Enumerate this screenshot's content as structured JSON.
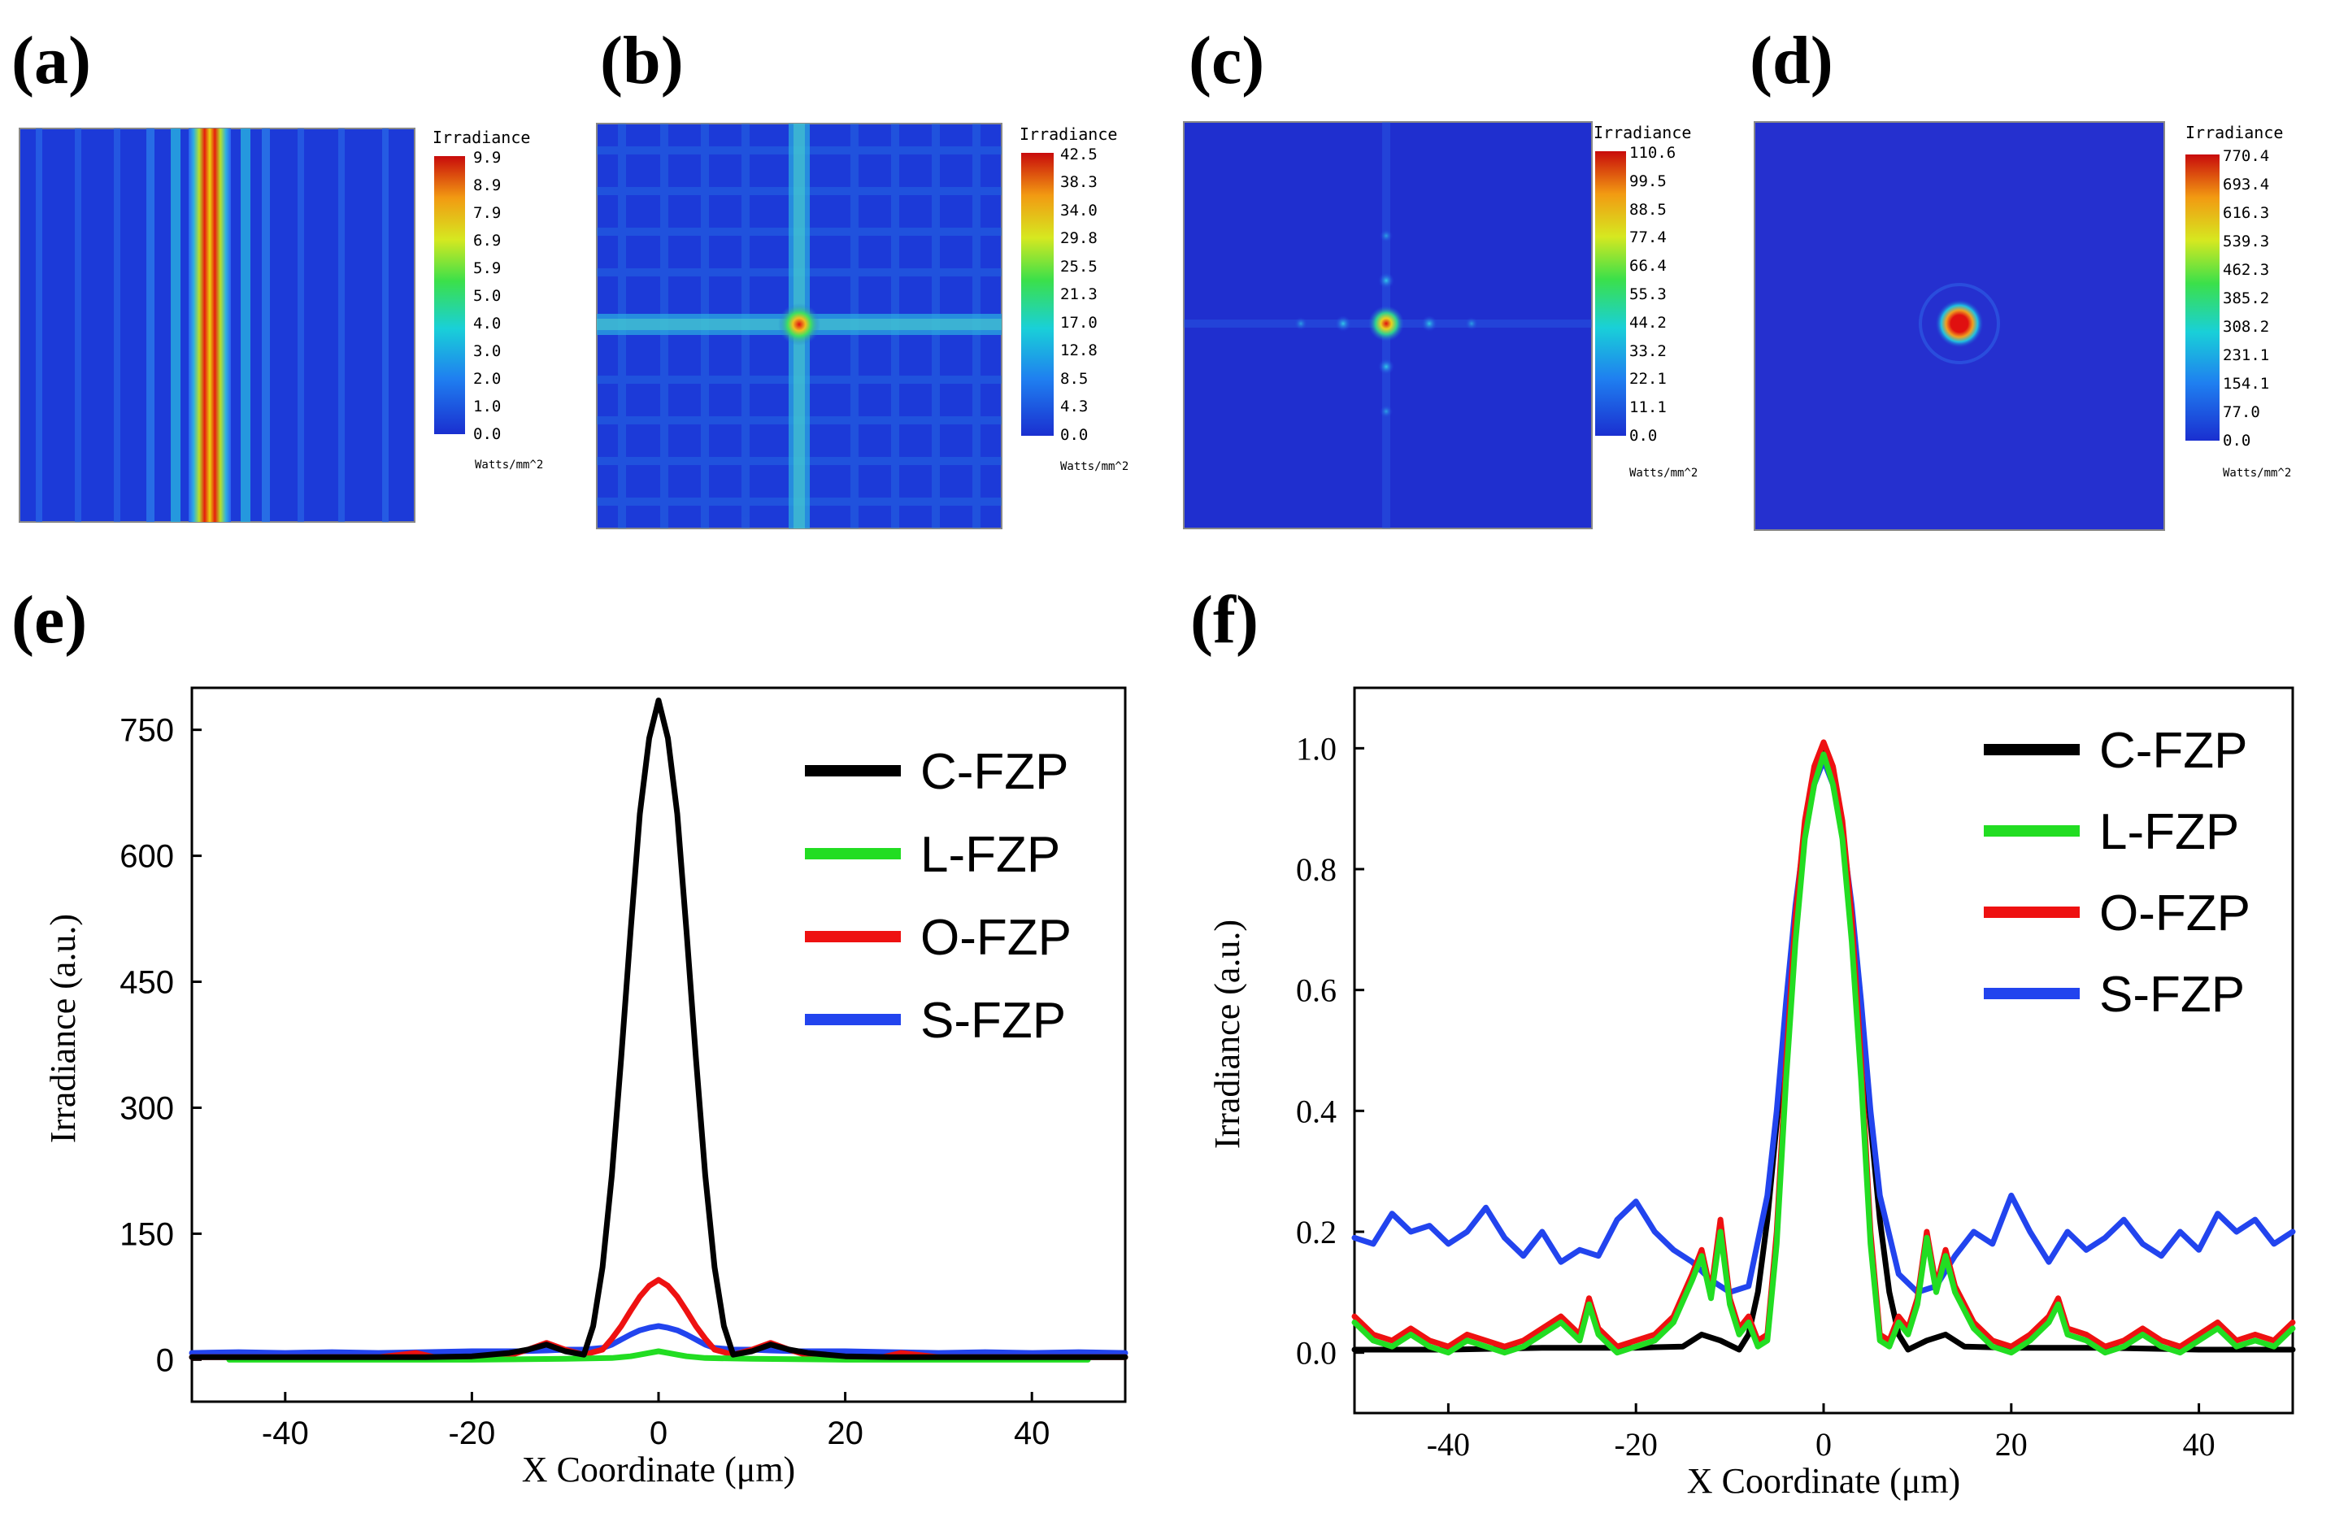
{
  "panels": {
    "a": {
      "letter": "(a)",
      "cb_title": "Irradiance",
      "cb_unit": "Watts/mm^2",
      "cb_ticks": [
        "9.9",
        "8.9",
        "7.9",
        "6.9",
        "5.9",
        "5.0",
        "4.0",
        "3.0",
        "2.0",
        "1.0",
        "0.0"
      ]
    },
    "b": {
      "letter": "(b)",
      "cb_title": "Irradiance",
      "cb_unit": "Watts/mm^2",
      "cb_ticks": [
        "42.5",
        "38.3",
        "34.0",
        "29.8",
        "25.5",
        "21.3",
        "17.0",
        "12.8",
        "8.5",
        "4.3",
        "0.0"
      ]
    },
    "c": {
      "letter": "(c)",
      "cb_title": "Irradiance",
      "cb_unit": "Watts/mm^2",
      "cb_ticks": [
        "110.6",
        "99.5",
        "88.5",
        "77.4",
        "66.4",
        "55.3",
        "44.2",
        "33.2",
        "22.1",
        "11.1",
        "0.0"
      ]
    },
    "d": {
      "letter": "(d)",
      "cb_title": "Irradiance",
      "cb_unit": "Watts/mm^2",
      "cb_ticks": [
        "770.4",
        "693.4",
        "616.3",
        "539.3",
        "462.3",
        "385.2",
        "308.2",
        "231.1",
        "154.1",
        "77.0",
        "0.0"
      ]
    },
    "e": {
      "letter": "(e)"
    },
    "f": {
      "letter": "(f)"
    }
  },
  "chart_data": [
    {
      "id": "e",
      "type": "line",
      "title": "",
      "xlabel": "X Coordinate (μm)",
      "ylabel": "Irradiance (a.u.)",
      "xlim": [
        -50,
        50
      ],
      "ylim": [
        -50,
        800
      ],
      "xticks": [
        -40,
        -20,
        0,
        20,
        40
      ],
      "yticks": [
        0,
        150,
        300,
        450,
        600,
        750
      ],
      "legend_position": "top-right",
      "series": [
        {
          "name": "C-FZP",
          "color": "#000000",
          "x": [
            -50,
            -45,
            -40,
            -35,
            -30,
            -25,
            -20,
            -16,
            -14,
            -12,
            -10,
            -8,
            -7,
            -6,
            -5,
            -4,
            -3,
            -2,
            -1,
            0,
            1,
            2,
            3,
            4,
            5,
            6,
            7,
            8,
            10,
            12,
            14,
            16,
            20,
            25,
            30,
            35,
            40,
            45,
            50
          ],
          "y": [
            3,
            3,
            3,
            3,
            3,
            3,
            4,
            8,
            12,
            18,
            10,
            6,
            40,
            110,
            220,
            360,
            510,
            650,
            740,
            785,
            740,
            650,
            510,
            360,
            220,
            110,
            40,
            6,
            10,
            18,
            12,
            8,
            4,
            3,
            3,
            3,
            3,
            3,
            3
          ]
        },
        {
          "name": "L-FZP",
          "color": "#22dd22",
          "x": [
            -46,
            -40,
            -30,
            -20,
            -10,
            -5,
            -3,
            -2,
            -1,
            0,
            1,
            2,
            3,
            5,
            10,
            20,
            30,
            40,
            46
          ],
          "y": [
            0,
            0,
            0,
            0,
            1,
            2,
            4,
            6,
            8,
            10,
            8,
            6,
            4,
            2,
            1,
            0,
            0,
            0,
            0
          ]
        },
        {
          "name": "O-FZP",
          "color": "#ee1111",
          "x": [
            -50,
            -45,
            -40,
            -35,
            -30,
            -26,
            -24,
            -20,
            -16,
            -14,
            -12,
            -10,
            -8,
            -6,
            -5,
            -4,
            -3,
            -2,
            -1,
            0,
            1,
            2,
            3,
            4,
            5,
            6,
            8,
            10,
            12,
            14,
            16,
            20,
            24,
            26,
            30,
            35,
            40,
            45,
            50
          ],
          "y": [
            3,
            3,
            3,
            3,
            3,
            8,
            3,
            3,
            5,
            12,
            20,
            12,
            6,
            12,
            25,
            40,
            58,
            75,
            88,
            95,
            88,
            75,
            58,
            40,
            25,
            12,
            6,
            12,
            20,
            12,
            5,
            3,
            3,
            8,
            3,
            3,
            3,
            3,
            3
          ]
        },
        {
          "name": "S-FZP",
          "color": "#2244ee",
          "x": [
            -50,
            -45,
            -40,
            -35,
            -30,
            -25,
            -20,
            -15,
            -12,
            -10,
            -8,
            -6,
            -5,
            -4,
            -3,
            -2,
            -1,
            0,
            1,
            2,
            3,
            4,
            5,
            6,
            8,
            10,
            12,
            15,
            20,
            25,
            30,
            35,
            40,
            45,
            50
          ],
          "y": [
            8,
            9,
            8,
            9,
            8,
            9,
            10,
            10,
            11,
            12,
            12,
            14,
            18,
            24,
            30,
            35,
            38,
            40,
            38,
            35,
            30,
            24,
            18,
            14,
            12,
            12,
            11,
            10,
            10,
            9,
            8,
            9,
            8,
            9,
            8
          ]
        }
      ]
    },
    {
      "id": "f",
      "type": "line",
      "title": "",
      "xlabel": "X Coordinate (μm)",
      "ylabel": "Irradiance (a.u.)",
      "xlim": [
        -50,
        50
      ],
      "ylim": [
        -0.1,
        1.1
      ],
      "xticks": [
        -40,
        -20,
        0,
        20,
        40
      ],
      "yticks": [
        "0.0",
        "0.2",
        "0.4",
        "0.6",
        "0.8",
        "1.0"
      ],
      "legend_position": "top-right",
      "series": [
        {
          "name": "C-FZP",
          "color": "#000000",
          "x": [
            -50,
            -40,
            -30,
            -20,
            -15,
            -13,
            -11,
            -9,
            -8,
            -7,
            -6,
            -5,
            -4,
            -3,
            -2,
            -1,
            0,
            1,
            2,
            3,
            4,
            5,
            6,
            7,
            8,
            9,
            11,
            13,
            15,
            20,
            30,
            40,
            50
          ],
          "y": [
            0.005,
            0.005,
            0.008,
            0.008,
            0.01,
            0.03,
            0.02,
            0.005,
            0.03,
            0.1,
            0.22,
            0.38,
            0.55,
            0.72,
            0.86,
            0.96,
            1.0,
            0.96,
            0.86,
            0.72,
            0.55,
            0.38,
            0.22,
            0.1,
            0.03,
            0.005,
            0.02,
            0.03,
            0.01,
            0.008,
            0.008,
            0.005,
            0.005
          ]
        },
        {
          "name": "L-FZP",
          "color": "#22dd22",
          "x": [
            -50,
            -48,
            -46,
            -44,
            -42,
            -40,
            -38,
            -36,
            -34,
            -32,
            -30,
            -28,
            -26,
            -25,
            -24,
            -22,
            -20,
            -18,
            -16,
            -14,
            -13,
            -12,
            -11,
            -10,
            -9,
            -8,
            -7,
            -6,
            -5,
            -4,
            -3,
            -2,
            -1,
            0,
            1,
            2,
            3,
            4,
            5,
            6,
            7,
            8,
            9,
            10,
            11,
            12,
            13,
            14,
            16,
            18,
            20,
            22,
            24,
            25,
            26,
            28,
            30,
            32,
            34,
            36,
            38,
            40,
            42,
            44,
            46,
            48,
            50
          ],
          "y": [
            0.05,
            0.02,
            0.01,
            0.03,
            0.01,
            0.0,
            0.02,
            0.01,
            0.0,
            0.01,
            0.03,
            0.05,
            0.02,
            0.08,
            0.03,
            0.0,
            0.01,
            0.02,
            0.05,
            0.12,
            0.16,
            0.09,
            0.2,
            0.08,
            0.03,
            0.05,
            0.01,
            0.02,
            0.18,
            0.45,
            0.68,
            0.85,
            0.94,
            0.99,
            0.94,
            0.85,
            0.68,
            0.45,
            0.18,
            0.02,
            0.01,
            0.05,
            0.03,
            0.08,
            0.19,
            0.1,
            0.16,
            0.1,
            0.04,
            0.01,
            0.0,
            0.02,
            0.05,
            0.08,
            0.03,
            0.02,
            0.0,
            0.01,
            0.03,
            0.01,
            0.0,
            0.02,
            0.04,
            0.01,
            0.02,
            0.01,
            0.04
          ]
        },
        {
          "name": "O-FZP",
          "color": "#ee1111",
          "x": [
            -50,
            -48,
            -46,
            -44,
            -42,
            -40,
            -38,
            -36,
            -34,
            -32,
            -30,
            -28,
            -26,
            -25,
            -24,
            -22,
            -20,
            -18,
            -16,
            -14,
            -13,
            -12,
            -11,
            -10,
            -9,
            -8,
            -7,
            -6,
            -5,
            -4,
            -3,
            -2,
            -1,
            0,
            1,
            2,
            3,
            4,
            5,
            6,
            7,
            8,
            9,
            10,
            11,
            12,
            13,
            14,
            16,
            18,
            20,
            22,
            24,
            25,
            26,
            28,
            30,
            32,
            34,
            36,
            38,
            40,
            42,
            44,
            46,
            48,
            50
          ],
          "y": [
            0.06,
            0.03,
            0.02,
            0.04,
            0.02,
            0.01,
            0.03,
            0.02,
            0.01,
            0.02,
            0.04,
            0.06,
            0.03,
            0.09,
            0.04,
            0.01,
            0.02,
            0.03,
            0.06,
            0.13,
            0.17,
            0.1,
            0.22,
            0.09,
            0.04,
            0.06,
            0.02,
            0.03,
            0.2,
            0.48,
            0.72,
            0.88,
            0.97,
            1.01,
            0.97,
            0.88,
            0.72,
            0.48,
            0.2,
            0.03,
            0.02,
            0.06,
            0.04,
            0.09,
            0.2,
            0.11,
            0.17,
            0.11,
            0.05,
            0.02,
            0.01,
            0.03,
            0.06,
            0.09,
            0.04,
            0.03,
            0.01,
            0.02,
            0.04,
            0.02,
            0.01,
            0.03,
            0.05,
            0.02,
            0.03,
            0.02,
            0.05
          ]
        },
        {
          "name": "S-FZP",
          "color": "#2244ee",
          "x": [
            -50,
            -48,
            -46,
            -44,
            -42,
            -40,
            -38,
            -36,
            -34,
            -32,
            -30,
            -28,
            -26,
            -24,
            -22,
            -20,
            -18,
            -16,
            -14,
            -12,
            -10,
            -8,
            -6,
            -5,
            -4,
            -3,
            -2,
            -1,
            0,
            1,
            2,
            3,
            4,
            5,
            6,
            8,
            10,
            12,
            14,
            16,
            18,
            20,
            22,
            24,
            26,
            28,
            30,
            32,
            34,
            36,
            38,
            40,
            42,
            44,
            46,
            48,
            50
          ],
          "y": [
            0.19,
            0.18,
            0.23,
            0.2,
            0.21,
            0.18,
            0.2,
            0.24,
            0.19,
            0.16,
            0.2,
            0.15,
            0.17,
            0.16,
            0.22,
            0.25,
            0.2,
            0.17,
            0.15,
            0.12,
            0.1,
            0.11,
            0.26,
            0.4,
            0.58,
            0.74,
            0.86,
            0.94,
            0.98,
            0.94,
            0.86,
            0.74,
            0.58,
            0.4,
            0.26,
            0.13,
            0.1,
            0.11,
            0.16,
            0.2,
            0.18,
            0.26,
            0.2,
            0.15,
            0.2,
            0.17,
            0.19,
            0.22,
            0.18,
            0.16,
            0.2,
            0.17,
            0.23,
            0.2,
            0.22,
            0.18,
            0.2
          ]
        }
      ]
    }
  ]
}
